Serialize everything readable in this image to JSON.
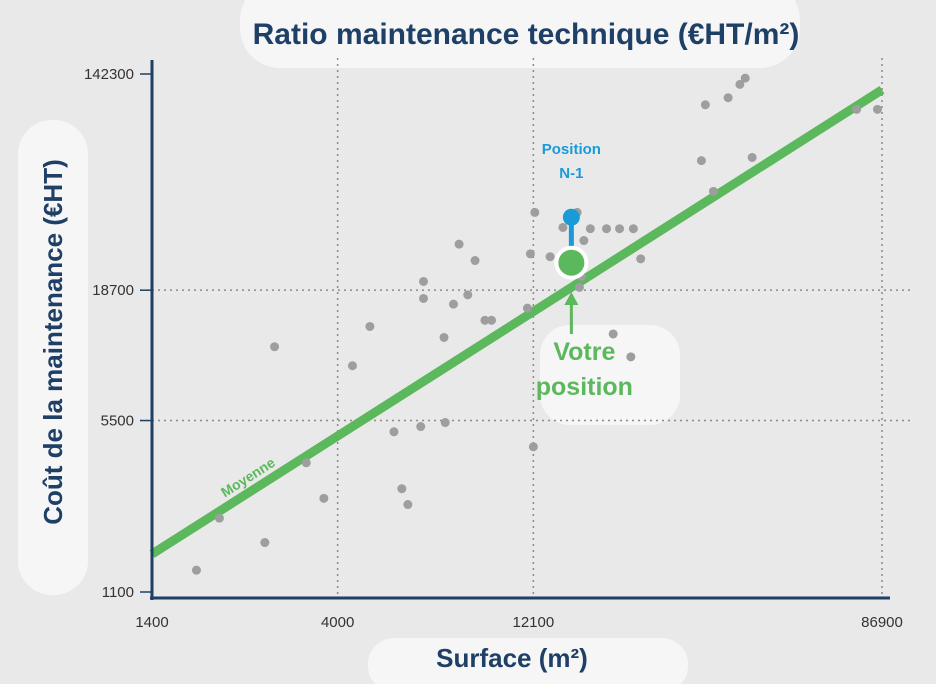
{
  "chart_data": {
    "type": "scatter",
    "title": "Ratio maintenance technique (€HT/m²)",
    "xlabel": "Surface (m²)",
    "ylabel": "Coût de la maintenance (€HT)",
    "x_scale": "log",
    "y_scale": "log",
    "xlim": [
      1400,
      86900
    ],
    "ylim": [
      1100,
      142300
    ],
    "x_ticks": [
      {
        "value": 1400,
        "label": "1400"
      },
      {
        "value": 4000,
        "label": "4000"
      },
      {
        "value": 12100,
        "label": "12100"
      },
      {
        "value": 86900,
        "label": "86900"
      }
    ],
    "y_ticks": [
      {
        "value": 1100,
        "label": "1100"
      },
      {
        "value": 5500,
        "label": "5500"
      },
      {
        "value": 18700,
        "label": "18700"
      },
      {
        "value": 142300,
        "label": "142300"
      }
    ],
    "grid": "dotted",
    "colors": {
      "points": "#9e9e9e",
      "trend": "#5cb85c",
      "position": "#5cb85c",
      "previous": "#1a9ad6",
      "axis": "#1e3f66"
    },
    "points": [
      [
        1800,
        1350
      ],
      [
        2050,
        2200
      ],
      [
        2650,
        1750
      ],
      [
        2800,
        11000
      ],
      [
        3350,
        3700
      ],
      [
        3700,
        2650
      ],
      [
        4350,
        9200
      ],
      [
        4800,
        13300
      ],
      [
        5500,
        4950
      ],
      [
        5750,
        2900
      ],
      [
        5950,
        2500
      ],
      [
        6400,
        5200
      ],
      [
        6500,
        17300
      ],
      [
        6500,
        20300
      ],
      [
        7300,
        12000
      ],
      [
        7350,
        5400
      ],
      [
        7700,
        16400
      ],
      [
        7950,
        28800
      ],
      [
        8350,
        17900
      ],
      [
        8700,
        24700
      ],
      [
        9200,
        14100
      ],
      [
        9550,
        14100
      ],
      [
        11700,
        15800
      ],
      [
        11900,
        26300
      ],
      [
        12100,
        4300
      ],
      [
        12200,
        38800
      ],
      [
        13300,
        25600
      ],
      [
        14300,
        33700
      ],
      [
        15500,
        38800
      ],
      [
        15700,
        19200
      ],
      [
        15900,
        21300
      ],
      [
        16100,
        29800
      ],
      [
        16700,
        33300
      ],
      [
        18300,
        33300
      ],
      [
        19000,
        12400
      ],
      [
        19700,
        33300
      ],
      [
        21000,
        10000
      ],
      [
        21300,
        33300
      ],
      [
        22200,
        25100
      ],
      [
        31300,
        63100
      ],
      [
        32000,
        106600
      ],
      [
        33500,
        47300
      ],
      [
        36400,
        113900
      ],
      [
        38900,
        129100
      ],
      [
        40100,
        136900
      ],
      [
        41700,
        65000
      ],
      [
        75300,
        102100
      ],
      [
        84700,
        102100
      ]
    ],
    "trend": {
      "name": "Moyenne",
      "from": [
        1400,
        1570
      ],
      "to": [
        86900,
        122700
      ]
    },
    "position": {
      "label_lines": [
        "Votre",
        "position"
      ],
      "x": 15000,
      "y": 24200
    },
    "previous_position": {
      "label_lines": [
        "Position",
        "N-1"
      ],
      "x": 15000,
      "y": 37100
    }
  }
}
